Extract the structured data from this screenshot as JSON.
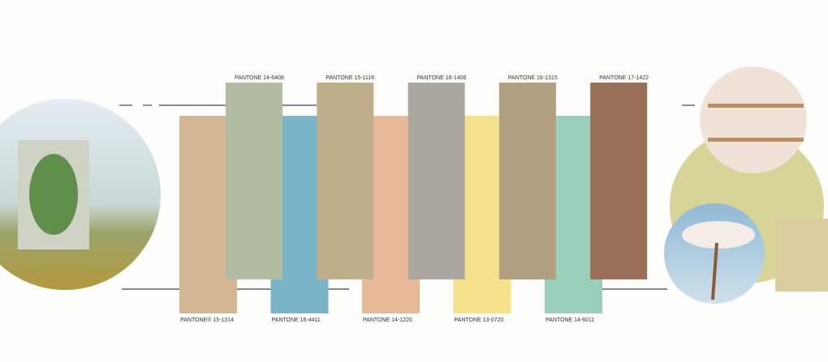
{
  "swatches_top": [
    {
      "label": "PANTONE 14-6408",
      "color": "#b0bba0"
    },
    {
      "label": "PANTONE 15-1116",
      "color": "#bfae8a"
    },
    {
      "label": "PANTONE 16-1406",
      "color": "#aca79e"
    },
    {
      "label": "PANTONE 16-1315",
      "color": "#b09f80"
    },
    {
      "label": "PANTONE 17-1422",
      "color": "#9a6f57"
    }
  ],
  "swatches_bottom": [
    {
      "label": "PANTONE® 15-1314",
      "color": "#d4b694"
    },
    {
      "label": "PANTONE 16-4411",
      "color": "#7ab4c8"
    },
    {
      "label": "PANTONE 14-1220",
      "color": "#e8b998"
    },
    {
      "label": "PANTONE 13-0720",
      "color": "#f3e28a"
    },
    {
      "label": "PANTONE 14-6011",
      "color": "#99cfb8"
    }
  ]
}
